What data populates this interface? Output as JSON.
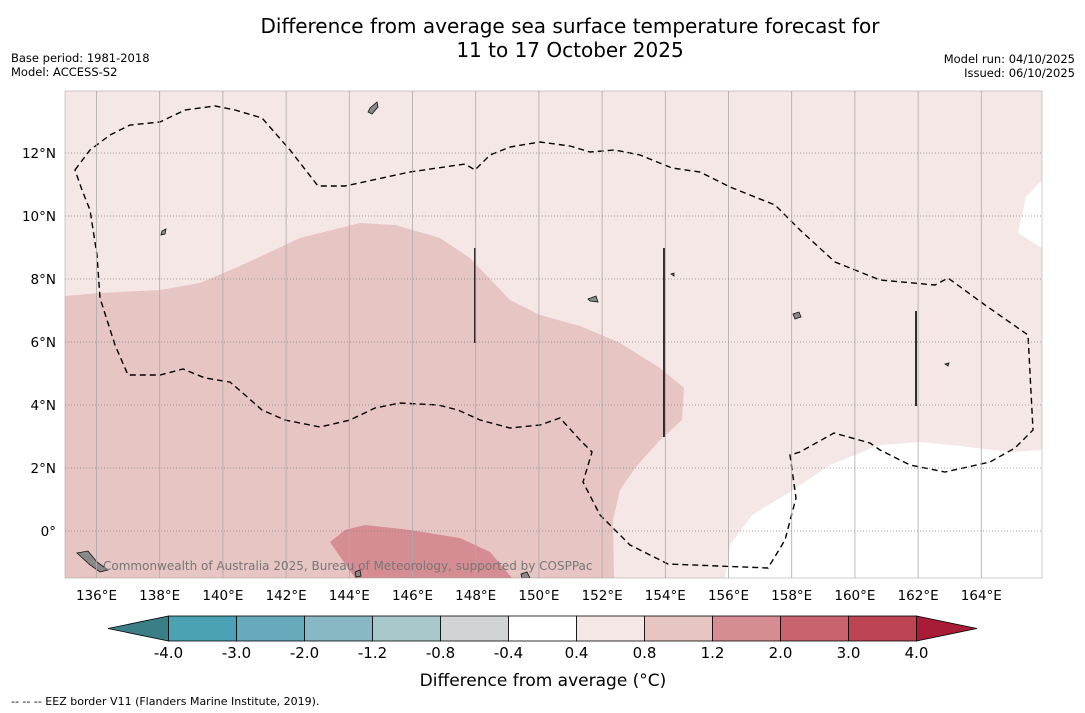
{
  "title": {
    "line1": "Difference from average sea surface temperature forecast for",
    "line2": "11 to 17 October 2025"
  },
  "meta_left": {
    "base_period": "Base period: 1981-2018",
    "model": "Model: ACCESS-S2"
  },
  "meta_right": {
    "model_run": "Model run: 04/10/2025",
    "issued": "Issued: 06/10/2025"
  },
  "map": {
    "lon_ticks": [
      "136°E",
      "138°E",
      "140°E",
      "142°E",
      "144°E",
      "146°E",
      "148°E",
      "150°E",
      "152°E",
      "154°E",
      "156°E",
      "158°E",
      "160°E",
      "162°E",
      "164°E"
    ],
    "lat_ticks": [
      "12°N",
      "10°N",
      "8°N",
      "6°N",
      "4°N",
      "2°N",
      "0°"
    ],
    "copyright": "Commonwealth of Australia 2025, Bureau of Meteorology, supported by COSPPac"
  },
  "legend": {
    "title": "Difference from average (°C)",
    "labels": [
      "-4.0",
      "-3.0",
      "-2.0",
      "-1.2",
      "-0.8",
      "-0.4",
      "0.4",
      "0.8",
      "1.2",
      "2.0",
      "3.0",
      "4.0"
    ],
    "colors": {
      "below": "#3a7f86",
      "bins": [
        "#4aa2b4",
        "#67aabb",
        "#88b8c3",
        "#a8c8cc",
        "#d0d4d4",
        "#ffffff",
        "#f5e7e6",
        "#e6c5c2",
        "#d68c93",
        "#c9646e",
        "#bd4553"
      ],
      "above": "#a81c38"
    }
  },
  "footnote": "--  --  -- EEZ border V11 (Flanders Marine Institute, 2019)."
}
